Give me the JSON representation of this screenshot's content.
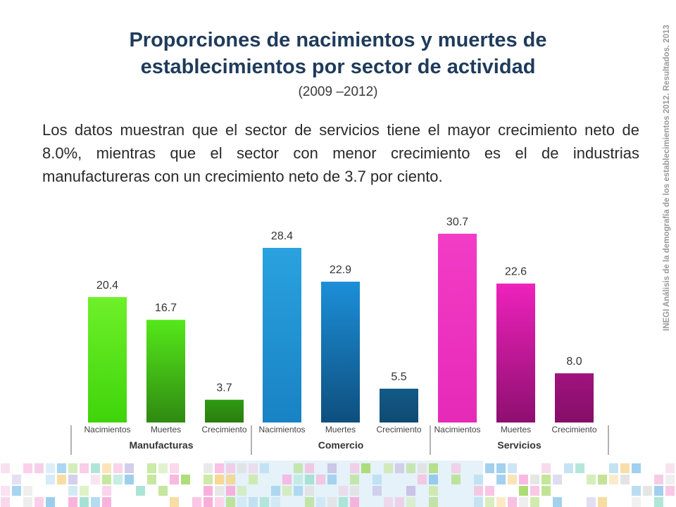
{
  "header": {
    "title_line1": "Proporciones de nacimientos y muertes de",
    "title_line2": "establecimientos por sector de actividad",
    "subtitle": "(2009 –2012)"
  },
  "body_text": "Los datos muestran que el sector de servicios tiene el mayor crecimiento neto de 8.0%, mientras que el sector con menor crecimiento es el de industrias manufactureras con un crecimiento neto de 3.7 por ciento.",
  "sidebar_text": "INEGI Análisis de la demografía de los establecimientos 2012. Resultados. 2013",
  "chart_data": {
    "type": "bar",
    "ylim": [
      0,
      32
    ],
    "groups": [
      {
        "name": "Manufacturas",
        "bars": [
          {
            "label": "Nacimientos",
            "value": 20.4,
            "display": "20.4",
            "color_top": "#6ef02a",
            "color_bottom": "#3fd40a"
          },
          {
            "label": "Muertes",
            "value": 16.7,
            "display": "16.7",
            "color_top": "#55e81a",
            "color_bottom": "#2f8a12"
          },
          {
            "label": "Crecimiento",
            "value": 3.7,
            "display": "3.7",
            "color_top": "#2f9a12",
            "color_bottom": "#2a7d0e"
          }
        ]
      },
      {
        "name": "Comercio",
        "bars": [
          {
            "label": "Nacimientos",
            "value": 28.4,
            "display": "28.4",
            "color_top": "#2aa2e0",
            "color_bottom": "#1882c4"
          },
          {
            "label": "Muertes",
            "value": 22.9,
            "display": "22.9",
            "color_top": "#1c8fd8",
            "color_bottom": "#0e4f7e"
          },
          {
            "label": "Crecimiento",
            "value": 5.5,
            "display": "5.5",
            "color_top": "#135a88",
            "color_bottom": "#0e4a72"
          }
        ]
      },
      {
        "name": "Servicios",
        "bars": [
          {
            "label": "Nacimientos",
            "value": 30.7,
            "display": "30.7",
            "color_top": "#f23cc6",
            "color_bottom": "#e62ab8"
          },
          {
            "label": "Muertes",
            "value": 22.6,
            "display": "22.6",
            "color_top": "#ee22bc",
            "color_bottom": "#8e0f70"
          },
          {
            "label": "Crecimiento",
            "value": 8.0,
            "display": "8.0",
            "color_top": "#a0137e",
            "color_bottom": "#850e68"
          }
        ]
      }
    ]
  },
  "mosaic_palette": [
    "#a6d96a",
    "#c9e7a0",
    "#8fc8ea",
    "#bcdff2",
    "#f7a8d8",
    "#f3c4e2",
    "#c7c0e6",
    "#f6d38a",
    "#9fe0d0",
    "#e0e0e0"
  ]
}
